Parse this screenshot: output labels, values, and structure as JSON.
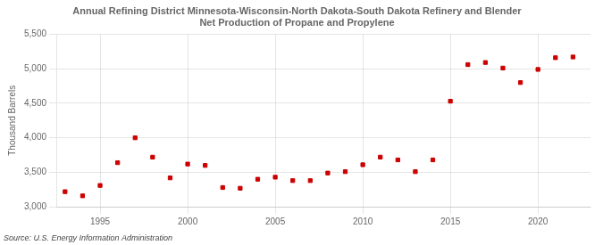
{
  "chart_data": {
    "type": "scatter",
    "title": "Annual Refining District Minnesota-Wisconsin-North Dakota-South Dakota Refinery and Blender\nNet Production of Propane and Propylene",
    "ylabel": "Thousand Barrels",
    "source": "Source: U.S. Energy Information Administration",
    "x": [
      1993,
      1994,
      1995,
      1996,
      1997,
      1998,
      1999,
      2000,
      2001,
      2002,
      2003,
      2004,
      2005,
      2006,
      2007,
      2008,
      2009,
      2010,
      2011,
      2012,
      2013,
      2014,
      2015,
      2016,
      2017,
      2018,
      2019,
      2020,
      2021,
      2022
    ],
    "values": [
      3220,
      3160,
      3310,
      3640,
      4000,
      3720,
      3420,
      3620,
      3600,
      3280,
      3270,
      3400,
      3430,
      3380,
      3380,
      3490,
      3510,
      3610,
      3720,
      3680,
      3510,
      3680,
      4530,
      5060,
      5090,
      5010,
      4800,
      4990,
      5160,
      5170
    ],
    "color": "#cc0000",
    "marker": "square",
    "xlim": [
      1992.5,
      2023
    ],
    "xticks": [
      1995,
      2000,
      2005,
      2010,
      2015,
      2020
    ],
    "ylim": [
      3000,
      5500
    ],
    "yticks": [
      {
        "value": 3000,
        "label": "3,000"
      },
      {
        "value": 3500,
        "label": "3,500"
      },
      {
        "value": 4000,
        "label": "4,000"
      },
      {
        "value": 4500,
        "label": "4,500"
      },
      {
        "value": 5000,
        "label": "5,000"
      },
      {
        "value": 5500,
        "label": "5,500"
      }
    ],
    "grid": true
  }
}
